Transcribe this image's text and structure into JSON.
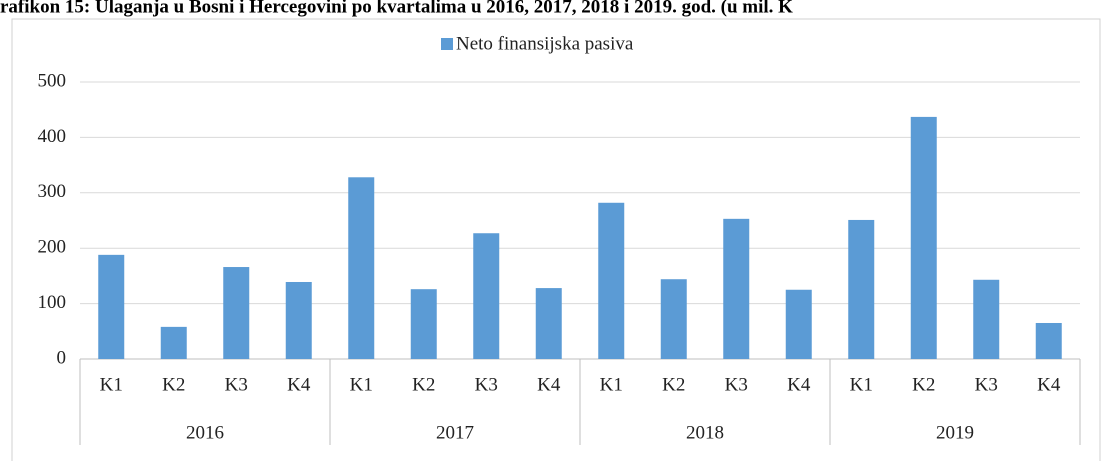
{
  "chart_data": {
    "type": "bar",
    "title": "rafikon 15: Ulaganja u Bosni i Hercegovini po kvartalima u 2016, 2017, 2018 i 2019. god. (u mil. K",
    "categories": [
      "K1",
      "K2",
      "K3",
      "K4",
      "K1",
      "K2",
      "K3",
      "K4",
      "K1",
      "K2",
      "K3",
      "K4",
      "K1",
      "K2",
      "K3",
      "K4"
    ],
    "groups": [
      "2016",
      "2017",
      "2018",
      "2019"
    ],
    "series": [
      {
        "name": "Neto finansijska pasiva",
        "color": "#5b9bd5",
        "values": [
          188,
          58,
          166,
          139,
          328,
          126,
          227,
          128,
          282,
          144,
          253,
          125,
          251,
          437,
          143,
          65
        ]
      }
    ],
    "ylim": [
      0,
      500
    ],
    "yticks": [
      0,
      100,
      200,
      300,
      400,
      500
    ],
    "grid": true,
    "legend": "top"
  }
}
